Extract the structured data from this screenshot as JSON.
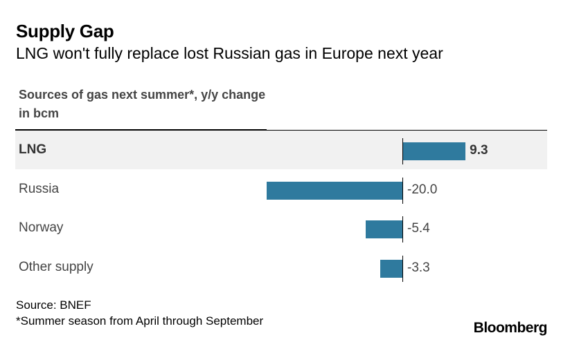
{
  "chart_data": {
    "type": "bar",
    "orientation": "horizontal",
    "title": "Supply Gap",
    "subtitle": "LNG won't fully replace lost Russian gas in Europe next year",
    "column_header": "Sources of gas next summer*, y/y change in bcm",
    "categories": [
      "LNG",
      "Russia",
      "Norway",
      "Other supply"
    ],
    "values": [
      9.3,
      -20.0,
      -5.4,
      -3.3
    ],
    "value_labels": [
      "9.3",
      "-20.0",
      "-5.4",
      "-3.3"
    ],
    "highlighted_category": "LNG",
    "xlim": [
      -20,
      10
    ],
    "bar_color": "#2f7a9e",
    "highlight_row_color": "#f1f1f1"
  },
  "footer": {
    "source": "Source: BNEF",
    "note": "*Summer season from April through September"
  },
  "brand": "Bloomberg"
}
